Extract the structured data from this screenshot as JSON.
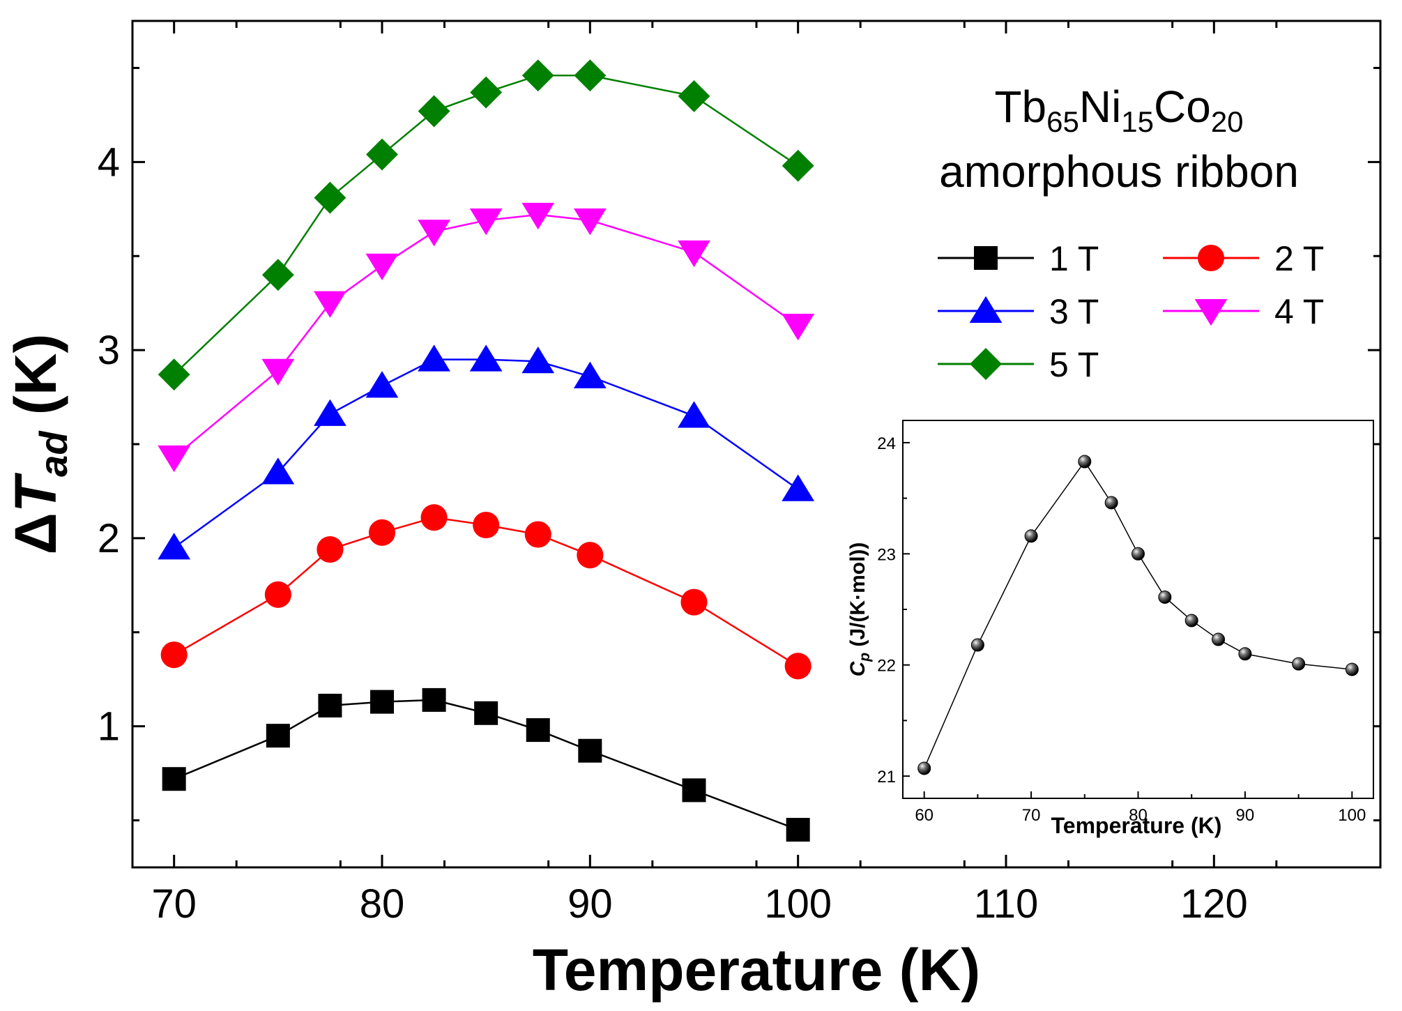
{
  "chart_data": [
    {
      "type": "line",
      "title_line1_parts": [
        "Tb",
        "65",
        "Ni",
        "15",
        "Co",
        "20"
      ],
      "title_line2": "amorphous ribbon",
      "xlabel": "Temperature (K)",
      "ylabel_prefix": "Δ",
      "ylabel_symbol": "T",
      "ylabel_subscript": "ad",
      "ylabel_unit": " (K)",
      "xlim": [
        68,
        128
      ],
      "ylim": [
        0.25,
        4.75
      ],
      "xticks": [
        70,
        80,
        90,
        100,
        110,
        120
      ],
      "yticks": [
        1,
        2,
        3,
        4
      ],
      "x": [
        70,
        75,
        77.5,
        80,
        82.5,
        85,
        87.5,
        90,
        95,
        100
      ],
      "series": [
        {
          "name": "1 T",
          "color": "#000000",
          "marker": "square",
          "values": [
            0.72,
            0.95,
            1.11,
            1.13,
            1.14,
            1.07,
            0.98,
            0.87,
            0.66,
            0.45
          ]
        },
        {
          "name": "2 T",
          "color": "#ff0000",
          "marker": "circle",
          "values": [
            1.38,
            1.7,
            1.94,
            2.03,
            2.11,
            2.07,
            2.02,
            1.91,
            1.66,
            1.32
          ]
        },
        {
          "name": "3 T",
          "color": "#0000ff",
          "marker": "triangle-up",
          "values": [
            1.95,
            2.35,
            2.66,
            2.81,
            2.95,
            2.95,
            2.94,
            2.86,
            2.65,
            2.26
          ]
        },
        {
          "name": "4 T",
          "color": "#ff00ff",
          "marker": "triangle-down",
          "values": [
            2.43,
            2.89,
            3.25,
            3.45,
            3.63,
            3.69,
            3.72,
            3.69,
            3.52,
            3.13
          ]
        },
        {
          "name": "5 T",
          "color": "#008000",
          "marker": "diamond",
          "values": [
            2.87,
            3.4,
            3.81,
            4.04,
            4.27,
            4.37,
            4.46,
            4.46,
            4.35,
            3.98
          ]
        }
      ]
    },
    {
      "type": "line",
      "role": "inset",
      "xlabel": "Temperature (K)",
      "ylabel_symbol": "C",
      "ylabel_subscript": "p",
      "ylabel_unit": " (J/(K·mol))",
      "xlim": [
        58,
        102
      ],
      "ylim": [
        20.8,
        24.2
      ],
      "xticks": [
        60,
        70,
        80,
        90,
        100
      ],
      "yticks": [
        21,
        22,
        23,
        24
      ],
      "x": [
        60,
        65,
        70,
        75,
        77.5,
        80,
        82.5,
        85,
        87.5,
        90,
        95,
        100
      ],
      "series": [
        {
          "name": "Cp",
          "color": "#000000",
          "marker": "sphere",
          "values": [
            21.07,
            22.18,
            23.16,
            23.83,
            23.46,
            23.0,
            22.61,
            22.4,
            22.23,
            22.1,
            22.01,
            21.96
          ]
        }
      ]
    }
  ]
}
